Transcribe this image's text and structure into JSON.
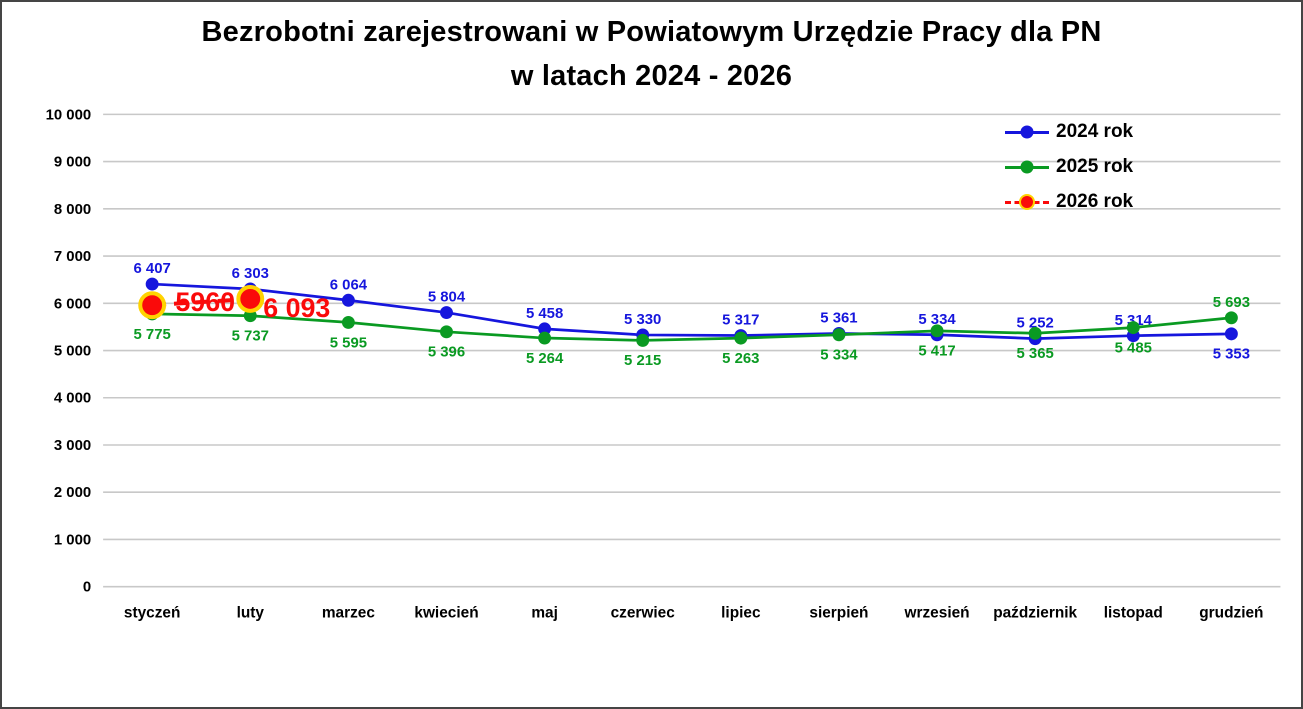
{
  "title": {
    "line1": "Bezrobotni zarejestrowani w Powiatowym Urzędzie Pracy dla PN",
    "line2": "w latach 2024 - 2026"
  },
  "chart_data": {
    "type": "line",
    "title": "Bezrobotni zarejestrowani w Powiatowym Urzędzie Pracy dla PN w latach 2024 - 2026",
    "grid": "horizontal-only",
    "legend_position": "top-right",
    "colors": {
      "gridline": "#c8c8c8",
      "axis_text": "#000000"
    },
    "y_axis": {
      "min": 0,
      "max": 10000,
      "step": 1000,
      "tick_labels": [
        "0",
        "1 000",
        "2 000",
        "3 000",
        "4 000",
        "5 000",
        "6 000",
        "7 000",
        "8 000",
        "9 000",
        "10 000"
      ]
    },
    "categories": [
      "styczeń",
      "luty",
      "marzec",
      "kwiecień",
      "maj",
      "czerwiec",
      "lipiec",
      "sierpień",
      "wrzesień",
      "październik",
      "listopad",
      "grudzień"
    ],
    "series": [
      {
        "name": "2024 rok",
        "color": "#1616dd",
        "line_style": "solid",
        "marker": "circle",
        "values": [
          6407,
          6303,
          6064,
          5804,
          5458,
          5330,
          5317,
          5361,
          5334,
          5252,
          5314,
          5353
        ],
        "labels": [
          {
            "t": "6 407",
            "pos": "above"
          },
          {
            "t": "6 303",
            "pos": "above"
          },
          {
            "t": "6 064",
            "pos": "above"
          },
          {
            "t": "5 804",
            "pos": "above"
          },
          {
            "t": "5 458",
            "pos": "above"
          },
          {
            "t": "5 330",
            "pos": "above"
          },
          {
            "t": "5 317",
            "pos": "above"
          },
          {
            "t": "5 361",
            "pos": "above"
          },
          {
            "t": "5 334",
            "pos": "above"
          },
          {
            "t": "5 252",
            "pos": "above"
          },
          {
            "t": "5 314",
            "pos": "above"
          },
          {
            "t": "5 353",
            "pos": "below"
          }
        ]
      },
      {
        "name": "2025 rok",
        "color": "#0a9a22",
        "line_style": "solid",
        "marker": "circle",
        "values": [
          5775,
          5737,
          5595,
          5396,
          5264,
          5215,
          5263,
          5334,
          5417,
          5365,
          5485,
          5693
        ],
        "labels": [
          {
            "t": "5 775",
            "pos": "below"
          },
          {
            "t": "5 737",
            "pos": "below"
          },
          {
            "t": "5 595",
            "pos": "below"
          },
          {
            "t": "5 396",
            "pos": "below"
          },
          {
            "t": "5 264",
            "pos": "below"
          },
          {
            "t": "5 215",
            "pos": "below"
          },
          {
            "t": "5 263",
            "pos": "below"
          },
          {
            "t": "5 334",
            "pos": "below"
          },
          {
            "t": "5 417",
            "pos": "below"
          },
          {
            "t": "5 365",
            "pos": "below"
          },
          {
            "t": "5 485",
            "pos": "below"
          },
          {
            "t": "5 693",
            "pos": "above"
          }
        ]
      },
      {
        "name": "2026 rok",
        "color": "#fa0a0a",
        "marker_stroke": "#ffd300",
        "line_style": "dashed",
        "marker": "circle-large",
        "values": [
          5960,
          6093,
          null,
          null,
          null,
          null,
          null,
          null,
          null,
          null,
          null,
          null
        ],
        "labels": [
          {
            "t": "5960",
            "pos": "mid-on-line",
            "size": 27
          },
          {
            "t": "6 093",
            "pos": "right",
            "size": 27
          }
        ]
      }
    ]
  }
}
